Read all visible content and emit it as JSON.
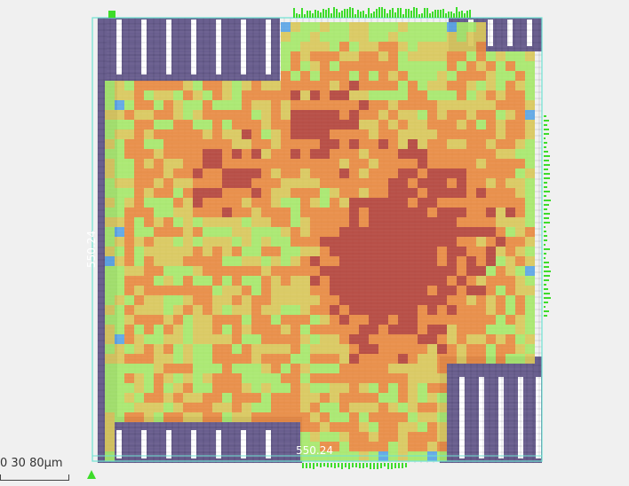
{
  "layout_view": {
    "dimension_bottom": "550.24",
    "dimension_left": "550.24",
    "scale_bar": {
      "ticks": "0   30   80μm"
    },
    "colors": {
      "background": "#f0f0f0",
      "macro_fill": "#6a5f8f",
      "macro_gap": "#ffffff",
      "density_low": "#5aa5e6",
      "density_mid": "#a6e86a",
      "density_high": "#e8893f",
      "density_peak": "#b3423a",
      "pin_green": "#3ddc2a",
      "die_outline": "#6fe3d2"
    }
  }
}
